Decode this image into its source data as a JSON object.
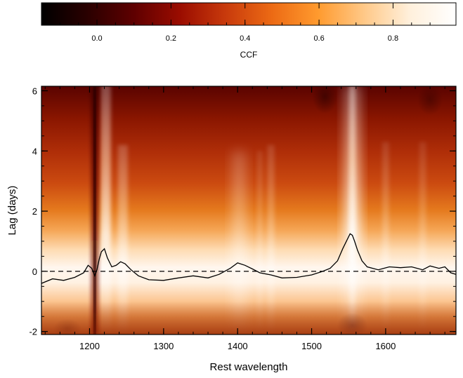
{
  "chart_data": [
    {
      "type": "colorbar",
      "xlabel": "CCF",
      "range": [
        -0.15,
        0.97
      ],
      "ticks": [
        "0.0",
        "0.2",
        "0.4",
        "0.6",
        "0.8"
      ],
      "tick_values": [
        0.0,
        0.2,
        0.4,
        0.6,
        0.8
      ],
      "colormap": [
        "#000000",
        "#2a0000",
        "#5e0000",
        "#9a0c00",
        "#c83a0c",
        "#ec6a14",
        "#ff9a2e",
        "#ffc887",
        "#fff0dc",
        "#ffffff"
      ]
    },
    {
      "type": "heatmap",
      "xlabel": "Rest wavelength",
      "ylabel": "Lag (days)",
      "xlim": [
        1135,
        1695
      ],
      "ylim": [
        -2.1,
        6.15
      ],
      "x_ticks": [
        "1200",
        "1300",
        "1400",
        "1500",
        "1600"
      ],
      "x_tick_values": [
        1200,
        1300,
        1400,
        1500,
        1600
      ],
      "y_ticks": [
        "-2",
        "0",
        "2",
        "4",
        "6"
      ],
      "y_tick_values": [
        -2,
        0,
        2,
        4,
        6
      ],
      "reference_line": {
        "y": 0,
        "style": "dashed"
      },
      "series": [
        {
          "x": [
            1135,
            1150,
            1165,
            1180,
            1192,
            1198,
            1203,
            1207,
            1210,
            1213,
            1216,
            1220,
            1224,
            1230,
            1236,
            1242,
            1248,
            1256,
            1266,
            1280,
            1300,
            1320,
            1340,
            1360,
            1375,
            1390,
            1400,
            1410,
            1420,
            1430,
            1445,
            1460,
            1480,
            1500,
            1515,
            1525,
            1535,
            1542,
            1548,
            1552,
            1555,
            1558,
            1562,
            1568,
            1575,
            1590,
            1605,
            1620,
            1635,
            1650,
            1660,
            1672,
            1680,
            1688,
            1695
          ],
          "y": [
            -0.4,
            -0.25,
            -0.3,
            -0.2,
            -0.05,
            0.2,
            0.1,
            -0.15,
            0.05,
            0.4,
            0.65,
            0.75,
            0.45,
            0.15,
            0.2,
            0.32,
            0.25,
            0.05,
            -0.15,
            -0.28,
            -0.3,
            -0.22,
            -0.15,
            -0.22,
            -0.1,
            0.1,
            0.28,
            0.2,
            0.08,
            -0.05,
            -0.12,
            -0.22,
            -0.2,
            -0.12,
            0.0,
            0.1,
            0.35,
            0.75,
            1.05,
            1.25,
            1.2,
            1.0,
            0.7,
            0.35,
            0.15,
            0.05,
            0.15,
            0.12,
            0.15,
            0.05,
            0.18,
            0.1,
            0.15,
            -0.05,
            -0.1
          ]
        }
      ]
    }
  ]
}
